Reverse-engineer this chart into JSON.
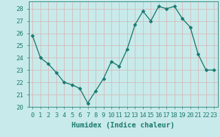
{
  "xlabel": "Humidex (Indice chaleur)",
  "x_values": [
    0,
    1,
    2,
    3,
    4,
    5,
    6,
    7,
    8,
    9,
    10,
    11,
    12,
    13,
    14,
    15,
    16,
    17,
    18,
    19,
    20,
    21,
    22,
    23
  ],
  "y_values": [
    25.8,
    24.0,
    23.5,
    22.8,
    22.0,
    21.8,
    21.5,
    20.3,
    21.3,
    22.3,
    23.7,
    23.3,
    24.7,
    26.7,
    27.8,
    27.0,
    28.2,
    28.0,
    28.2,
    27.2,
    26.5,
    24.3,
    23.0,
    23.0
  ],
  "ylim": [
    20,
    28.6
  ],
  "yticks": [
    20,
    21,
    22,
    23,
    24,
    25,
    26,
    27,
    28
  ],
  "xlim": [
    -0.5,
    23.5
  ],
  "xticks": [
    0,
    1,
    2,
    3,
    4,
    5,
    6,
    7,
    8,
    9,
    10,
    11,
    12,
    13,
    14,
    15,
    16,
    17,
    18,
    19,
    20,
    21,
    22,
    23
  ],
  "line_color": "#1a7a6e",
  "marker": "D",
  "marker_size": 2.5,
  "background_color": "#c8eaea",
  "grid_color": "#d8b0b0",
  "tick_color": "#1a7a6e",
  "tick_label_fontsize": 6.5,
  "xlabel_fontsize": 7.5,
  "line_width": 1.0
}
